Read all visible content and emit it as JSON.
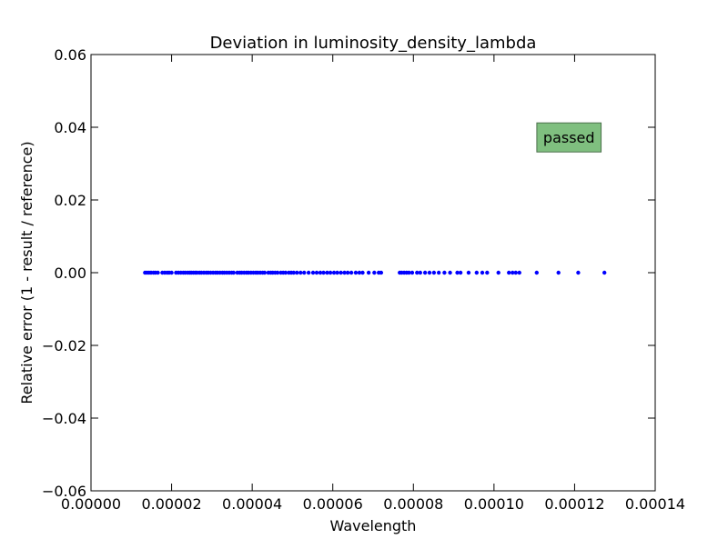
{
  "chart_data": {
    "type": "scatter",
    "title": "Deviation in luminosity_density_lambda",
    "xlabel": "Wavelength",
    "ylabel": "Relative error (1 - result / reference)",
    "xlim": [
      0.0,
      0.00014
    ],
    "ylim": [
      -0.06,
      0.06
    ],
    "x_ticks": [
      {
        "value": 0.0,
        "label": "0.00000"
      },
      {
        "value": 2e-05,
        "label": "0.00002"
      },
      {
        "value": 4e-05,
        "label": "0.00004"
      },
      {
        "value": 6e-05,
        "label": "0.00006"
      },
      {
        "value": 8e-05,
        "label": "0.00008"
      },
      {
        "value": 0.0001,
        "label": "0.00010"
      },
      {
        "value": 0.00012,
        "label": "0.00012"
      },
      {
        "value": 0.00014,
        "label": "0.00014"
      }
    ],
    "y_ticks": [
      {
        "value": -0.06,
        "label": "−0.06"
      },
      {
        "value": -0.04,
        "label": "−0.04"
      },
      {
        "value": -0.02,
        "label": "−0.02"
      },
      {
        "value": 0.0,
        "label": "0.00"
      },
      {
        "value": 0.02,
        "label": "0.02"
      },
      {
        "value": 0.04,
        "label": "0.04"
      },
      {
        "value": 0.06,
        "label": "0.06"
      }
    ],
    "grid": false,
    "series": [
      {
        "color": "#0000ff",
        "x": [
          1.34e-05,
          1.39e-05,
          1.44e-05,
          1.49e-05,
          1.55e-05,
          1.6e-05,
          1.66e-05,
          1.77e-05,
          1.83e-05,
          1.89e-05,
          1.94e-05,
          2e-05,
          2.11e-05,
          2.17e-05,
          2.23e-05,
          2.29e-05,
          2.34e-05,
          2.4e-05,
          2.45e-05,
          2.49e-05,
          2.54e-05,
          2.59e-05,
          2.63e-05,
          2.69e-05,
          2.74e-05,
          2.8e-05,
          2.86e-05,
          2.91e-05,
          2.97e-05,
          3.03e-05,
          3.09e-05,
          3.14e-05,
          3.2e-05,
          3.26e-05,
          3.31e-05,
          3.37e-05,
          3.43e-05,
          3.49e-05,
          3.54e-05,
          3.63e-05,
          3.69e-05,
          3.74e-05,
          3.8e-05,
          3.86e-05,
          3.91e-05,
          3.97e-05,
          4.03e-05,
          4.09e-05,
          4.14e-05,
          4.2e-05,
          4.26e-05,
          4.31e-05,
          4.4e-05,
          4.46e-05,
          4.51e-05,
          4.57e-05,
          4.63e-05,
          4.71e-05,
          4.77e-05,
          4.83e-05,
          4.91e-05,
          4.97e-05,
          5.03e-05,
          5.11e-05,
          5.2e-05,
          5.29e-05,
          5.4e-05,
          5.51e-05,
          5.6e-05,
          5.69e-05,
          5.77e-05,
          5.86e-05,
          5.94e-05,
          6.03e-05,
          6.11e-05,
          6.2e-05,
          6.29e-05,
          6.37e-05,
          6.46e-05,
          6.57e-05,
          6.66e-05,
          6.74e-05,
          6.89e-05,
          7.03e-05,
          7.14e-05,
          7.2e-05,
          7.66e-05,
          7.71e-05,
          7.77e-05,
          7.83e-05,
          7.89e-05,
          7.97e-05,
          8.09e-05,
          8.17e-05,
          8.29e-05,
          8.4e-05,
          8.51e-05,
          8.63e-05,
          8.77e-05,
          8.91e-05,
          9.09e-05,
          9.17e-05,
          9.37e-05,
          9.57e-05,
          9.71e-05,
          9.83e-05,
          0.0001011,
          0.0001037,
          0.0001046,
          0.0001054,
          0.0001063,
          0.0001106,
          0.000116,
          0.0001209,
          0.0001274
        ],
        "y": 0.0
      }
    ],
    "annotations": [
      {
        "text": "passed",
        "x": 0.0001186,
        "y": 0.0372,
        "box_color": "#7fbf7f",
        "position": "upper-right"
      }
    ]
  }
}
